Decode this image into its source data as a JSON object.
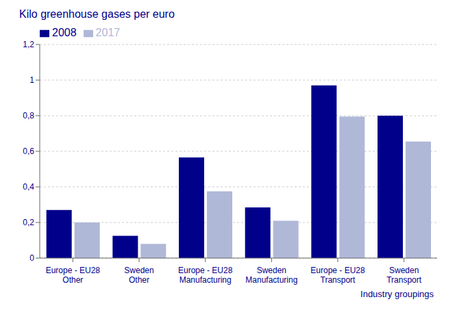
{
  "chart_data": {
    "type": "bar",
    "title": "Kilo greenhouse gases per euro",
    "xlabel": "Industry groupings",
    "categories": [
      "Europe - EU28\nOther",
      "Sweden\nOther",
      "Europe - EU28\nManufacturing",
      "Sweden\nManufacturing",
      "Europe - EU28\nTransport",
      "Sweden\nTransport"
    ],
    "series": [
      {
        "name": "2008",
        "color": "#00008B",
        "values": [
          0.27,
          0.125,
          0.565,
          0.285,
          0.97,
          0.8
        ]
      },
      {
        "name": "2017",
        "color": "#B0B8D8",
        "values": [
          0.2,
          0.08,
          0.375,
          0.21,
          0.795,
          0.655
        ]
      }
    ],
    "ylim": [
      0,
      1.2
    ],
    "yticks": [
      0,
      {
        "value": 0.2,
        "label": "0,2"
      },
      {
        "value": 0.4,
        "label": "0,4"
      },
      {
        "value": 0.6,
        "label": "0,6"
      },
      {
        "value": 0.8,
        "label": "0,8"
      },
      1,
      {
        "value": 1.2,
        "label": "1,2"
      }
    ],
    "grid": true,
    "legend": "upper left"
  }
}
